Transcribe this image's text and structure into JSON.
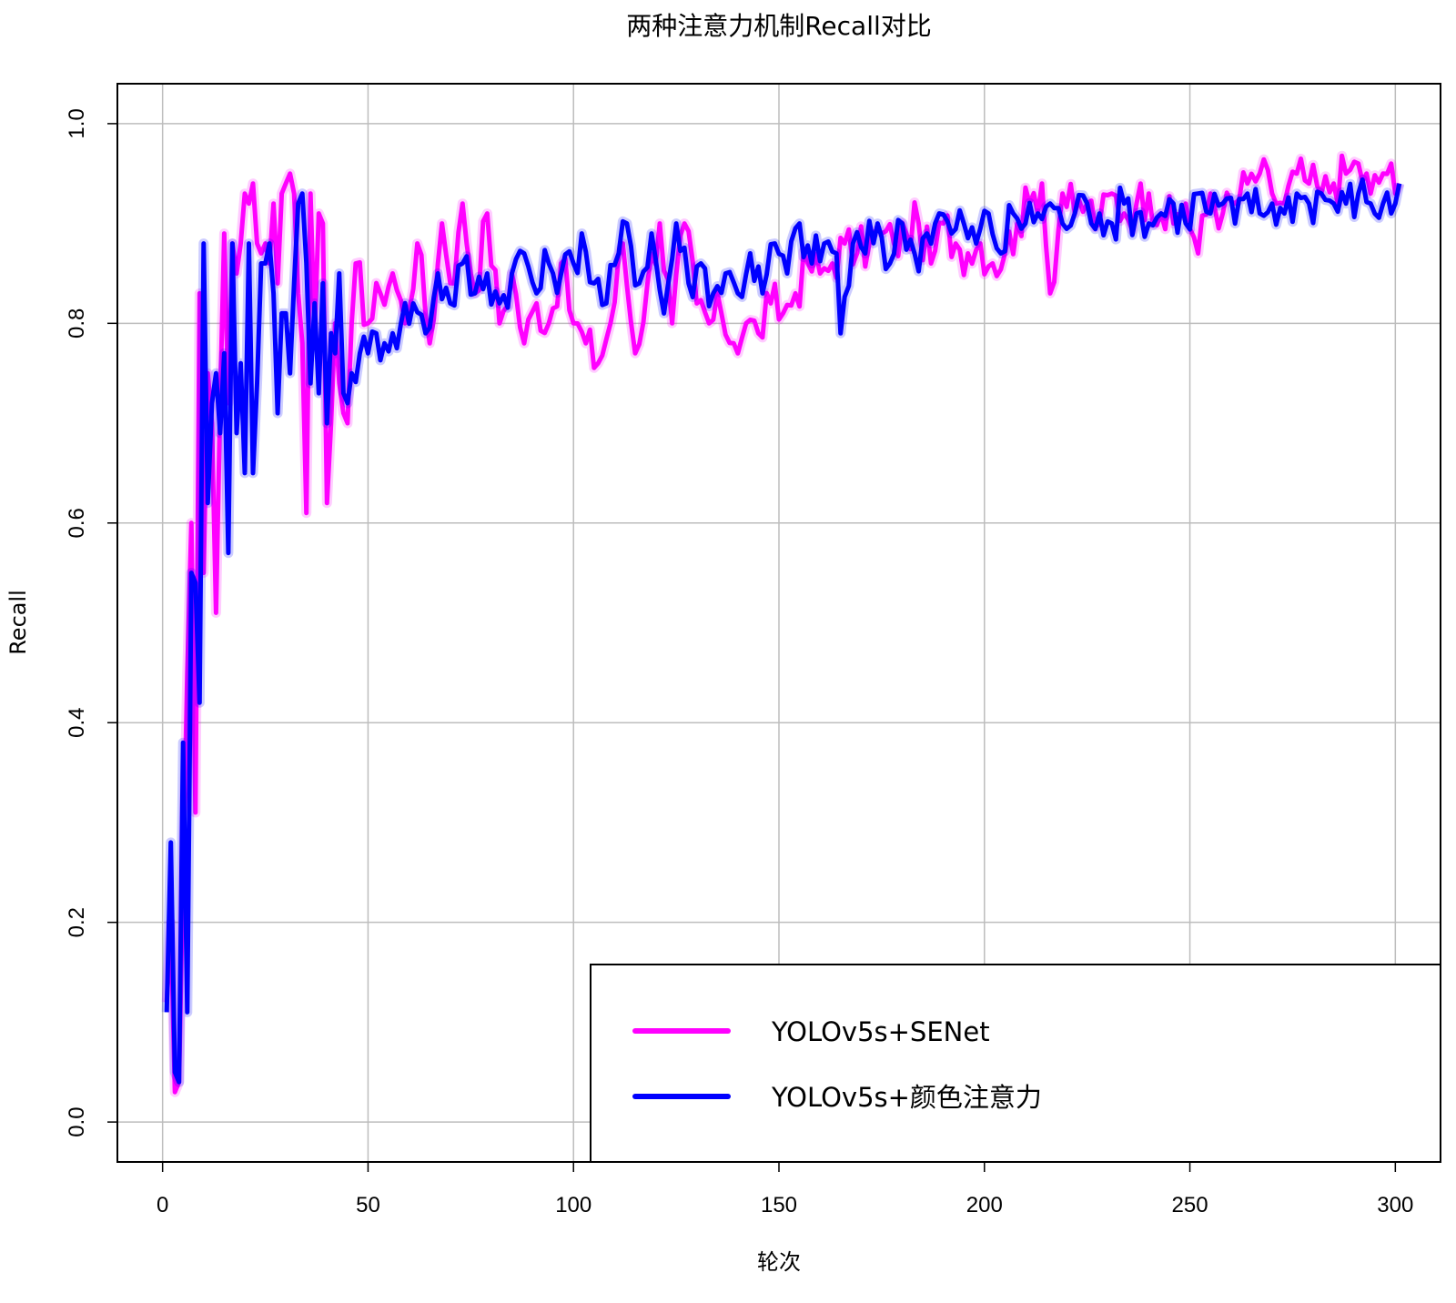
{
  "chart_data": {
    "type": "line",
    "title": "两种注意力机制Recall对比",
    "xlabel": "轮次",
    "ylabel": "Recall",
    "xlim": [
      -11,
      311
    ],
    "ylim": [
      -0.04,
      1.04
    ],
    "xticks": [
      0,
      50,
      100,
      150,
      200,
      250,
      300
    ],
    "xtick_labels": [
      "0",
      "50",
      "100",
      "150",
      "200",
      "250",
      "300"
    ],
    "yticks": [
      0.0,
      0.2,
      0.4,
      0.6,
      0.8,
      1.0
    ],
    "ytick_labels": [
      "0.0",
      "0.2",
      "0.4",
      "0.6",
      "0.8",
      "1.0"
    ],
    "grid": true,
    "legend_position": "bottom-right",
    "series": [
      {
        "name": "YOLOv5s+SENet",
        "color": "#ff00ff",
        "keypoints": [
          [
            1,
            0.12
          ],
          [
            2,
            0.2
          ],
          [
            3,
            0.03
          ],
          [
            4,
            0.04
          ],
          [
            5,
            0.25
          ],
          [
            6,
            0.45
          ],
          [
            7,
            0.6
          ],
          [
            8,
            0.31
          ],
          [
            9,
            0.83
          ],
          [
            10,
            0.55
          ],
          [
            11,
            0.75
          ],
          [
            12,
            0.7
          ],
          [
            13,
            0.51
          ],
          [
            14,
            0.72
          ],
          [
            15,
            0.89
          ],
          [
            16,
            0.72
          ],
          [
            17,
            0.88
          ],
          [
            18,
            0.85
          ],
          [
            19,
            0.88
          ],
          [
            20,
            0.93
          ],
          [
            21,
            0.92
          ],
          [
            22,
            0.94
          ],
          [
            23,
            0.88
          ],
          [
            24,
            0.87
          ],
          [
            25,
            0.88
          ],
          [
            26,
            0.86
          ],
          [
            27,
            0.92
          ],
          [
            28,
            0.84
          ],
          [
            29,
            0.93
          ],
          [
            30,
            0.94
          ],
          [
            31,
            0.95
          ],
          [
            32,
            0.93
          ],
          [
            33,
            0.83
          ],
          [
            34,
            0.78
          ],
          [
            35,
            0.61
          ],
          [
            36,
            0.93
          ],
          [
            37,
            0.79
          ],
          [
            38,
            0.91
          ],
          [
            39,
            0.9
          ],
          [
            40,
            0.62
          ],
          [
            41,
            0.7
          ],
          [
            42,
            0.8
          ],
          [
            43,
            0.74
          ],
          [
            44,
            0.71
          ],
          [
            45,
            0.7
          ],
          [
            47,
            0.86
          ],
          [
            50,
            0.8
          ],
          [
            53,
            0.83
          ],
          [
            56,
            0.85
          ],
          [
            59,
            0.8
          ],
          [
            62,
            0.88
          ],
          [
            65,
            0.78
          ],
          [
            68,
            0.9
          ],
          [
            71,
            0.84
          ],
          [
            73,
            0.92
          ],
          [
            76,
            0.83
          ],
          [
            79,
            0.91
          ],
          [
            82,
            0.8
          ],
          [
            85,
            0.85
          ],
          [
            88,
            0.78
          ],
          [
            91,
            0.82
          ],
          [
            94,
            0.8
          ],
          [
            97,
            0.86
          ],
          [
            100,
            0.8
          ],
          [
            103,
            0.78
          ],
          [
            106,
            0.76
          ],
          [
            109,
            0.8
          ],
          [
            112,
            0.88
          ],
          [
            115,
            0.77
          ],
          [
            118,
            0.84
          ],
          [
            121,
            0.9
          ],
          [
            124,
            0.8
          ],
          [
            127,
            0.9
          ],
          [
            130,
            0.82
          ],
          [
            133,
            0.8
          ],
          [
            136,
            0.81
          ],
          [
            139,
            0.78
          ],
          [
            142,
            0.8
          ],
          [
            145,
            0.79
          ],
          [
            148,
            0.82
          ],
          [
            151,
            0.81
          ],
          [
            154,
            0.83
          ],
          [
            157,
            0.86
          ],
          [
            160,
            0.85
          ],
          [
            163,
            0.86
          ],
          [
            166,
            0.88
          ],
          [
            169,
            0.87
          ],
          [
            172,
            0.88
          ],
          [
            175,
            0.89
          ],
          [
            178,
            0.88
          ],
          [
            181,
            0.89
          ],
          [
            184,
            0.9
          ],
          [
            187,
            0.86
          ],
          [
            190,
            0.9
          ],
          [
            193,
            0.88
          ],
          [
            196,
            0.87
          ],
          [
            199,
            0.88
          ],
          [
            202,
            0.86
          ],
          [
            205,
            0.87
          ],
          [
            208,
            0.9
          ],
          [
            211,
            0.92
          ],
          [
            214,
            0.94
          ],
          [
            216,
            0.83
          ],
          [
            219,
            0.93
          ],
          [
            222,
            0.91
          ],
          [
            225,
            0.92
          ],
          [
            228,
            0.9
          ],
          [
            231,
            0.93
          ],
          [
            234,
            0.91
          ],
          [
            237,
            0.92
          ],
          [
            240,
            0.93
          ],
          [
            243,
            0.91
          ],
          [
            246,
            0.9
          ],
          [
            249,
            0.92
          ],
          [
            252,
            0.87
          ],
          [
            255,
            0.93
          ],
          [
            258,
            0.91
          ],
          [
            261,
            0.92
          ],
          [
            264,
            0.94
          ],
          [
            267,
            0.95
          ],
          [
            270,
            0.93
          ],
          [
            273,
            0.92
          ],
          [
            276,
            0.95
          ],
          [
            279,
            0.94
          ],
          [
            282,
            0.93
          ],
          [
            285,
            0.94
          ],
          [
            288,
            0.95
          ],
          [
            291,
            0.96
          ],
          [
            294,
            0.93
          ],
          [
            297,
            0.95
          ],
          [
            299,
            0.96
          ],
          [
            300,
            0.93
          ],
          [
            301,
            0.94
          ]
        ]
      },
      {
        "name": "YOLOv5s+颜色注意力",
        "color": "#0000ff",
        "keypoints": [
          [
            1,
            0.11
          ],
          [
            2,
            0.28
          ],
          [
            3,
            0.05
          ],
          [
            4,
            0.04
          ],
          [
            5,
            0.38
          ],
          [
            6,
            0.11
          ],
          [
            7,
            0.55
          ],
          [
            8,
            0.54
          ],
          [
            9,
            0.42
          ],
          [
            10,
            0.88
          ],
          [
            11,
            0.62
          ],
          [
            12,
            0.72
          ],
          [
            13,
            0.75
          ],
          [
            14,
            0.69
          ],
          [
            15,
            0.77
          ],
          [
            16,
            0.57
          ],
          [
            17,
            0.88
          ],
          [
            18,
            0.69
          ],
          [
            19,
            0.76
          ],
          [
            20,
            0.65
          ],
          [
            21,
            0.88
          ],
          [
            22,
            0.65
          ],
          [
            23,
            0.74
          ],
          [
            24,
            0.86
          ],
          [
            25,
            0.86
          ],
          [
            26,
            0.88
          ],
          [
            27,
            0.83
          ],
          [
            28,
            0.71
          ],
          [
            29,
            0.81
          ],
          [
            30,
            0.81
          ],
          [
            31,
            0.75
          ],
          [
            32,
            0.84
          ],
          [
            33,
            0.92
          ],
          [
            34,
            0.93
          ],
          [
            35,
            0.86
          ],
          [
            36,
            0.74
          ],
          [
            37,
            0.82
          ],
          [
            38,
            0.73
          ],
          [
            39,
            0.84
          ],
          [
            40,
            0.7
          ],
          [
            41,
            0.79
          ],
          [
            42,
            0.77
          ],
          [
            43,
            0.85
          ],
          [
            44,
            0.73
          ],
          [
            45,
            0.72
          ],
          [
            46,
            0.75
          ],
          [
            48,
            0.77
          ],
          [
            50,
            0.77
          ],
          [
            52,
            0.79
          ],
          [
            54,
            0.78
          ],
          [
            56,
            0.79
          ],
          [
            58,
            0.8
          ],
          [
            61,
            0.82
          ],
          [
            64,
            0.79
          ],
          [
            67,
            0.85
          ],
          [
            70,
            0.82
          ],
          [
            73,
            0.86
          ],
          [
            76,
            0.83
          ],
          [
            79,
            0.85
          ],
          [
            82,
            0.82
          ],
          [
            85,
            0.85
          ],
          [
            88,
            0.87
          ],
          [
            91,
            0.83
          ],
          [
            94,
            0.86
          ],
          [
            97,
            0.85
          ],
          [
            100,
            0.86
          ],
          [
            102,
            0.89
          ],
          [
            105,
            0.84
          ],
          [
            108,
            0.82
          ],
          [
            111,
            0.87
          ],
          [
            113,
            0.9
          ],
          [
            116,
            0.84
          ],
          [
            119,
            0.89
          ],
          [
            122,
            0.81
          ],
          [
            125,
            0.9
          ],
          [
            128,
            0.84
          ],
          [
            131,
            0.86
          ],
          [
            134,
            0.83
          ],
          [
            137,
            0.85
          ],
          [
            140,
            0.83
          ],
          [
            143,
            0.87
          ],
          [
            146,
            0.83
          ],
          [
            149,
            0.88
          ],
          [
            152,
            0.85
          ],
          [
            155,
            0.9
          ],
          [
            158,
            0.86
          ],
          [
            161,
            0.88
          ],
          [
            164,
            0.87
          ],
          [
            165,
            0.79
          ],
          [
            168,
            0.88
          ],
          [
            171,
            0.87
          ],
          [
            174,
            0.9
          ],
          [
            177,
            0.86
          ],
          [
            180,
            0.9
          ],
          [
            183,
            0.87
          ],
          [
            186,
            0.89
          ],
          [
            189,
            0.91
          ],
          [
            192,
            0.89
          ],
          [
            195,
            0.9
          ],
          [
            198,
            0.88
          ],
          [
            201,
            0.91
          ],
          [
            204,
            0.87
          ],
          [
            207,
            0.91
          ],
          [
            210,
            0.9
          ],
          [
            213,
            0.91
          ],
          [
            216,
            0.92
          ],
          [
            219,
            0.9
          ],
          [
            222,
            0.91
          ],
          [
            225,
            0.92
          ],
          [
            228,
            0.91
          ],
          [
            231,
            0.9
          ],
          [
            234,
            0.92
          ],
          [
            237,
            0.91
          ],
          [
            240,
            0.9
          ],
          [
            243,
            0.91
          ],
          [
            246,
            0.92
          ],
          [
            249,
            0.9
          ],
          [
            252,
            0.93
          ],
          [
            255,
            0.91
          ],
          [
            258,
            0.92
          ],
          [
            261,
            0.9
          ],
          [
            264,
            0.93
          ],
          [
            267,
            0.91
          ],
          [
            270,
            0.92
          ],
          [
            273,
            0.91
          ],
          [
            276,
            0.93
          ],
          [
            279,
            0.92
          ],
          [
            282,
            0.93
          ],
          [
            285,
            0.92
          ],
          [
            288,
            0.92
          ],
          [
            291,
            0.93
          ],
          [
            294,
            0.92
          ],
          [
            297,
            0.92
          ],
          [
            299,
            0.91
          ],
          [
            300,
            0.92
          ],
          [
            301,
            0.94
          ]
        ]
      }
    ]
  }
}
